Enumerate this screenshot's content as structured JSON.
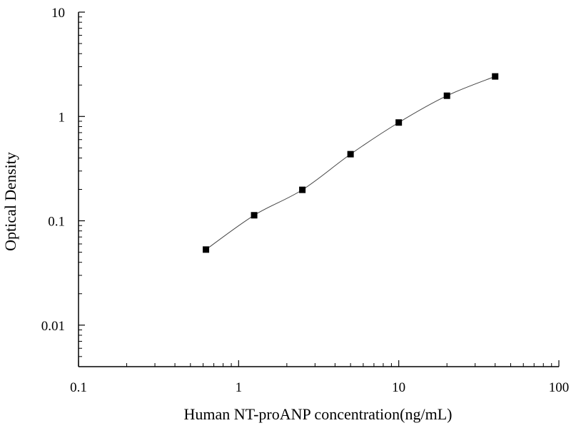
{
  "chart_data": {
    "type": "scatter",
    "title": "",
    "xlabel": "Human NT-proANP concentration(ng/mL)",
    "ylabel": "Optical Density",
    "x_scale": "log",
    "y_scale": "log",
    "xlim": [
      0.1,
      100
    ],
    "ylim": [
      0.004,
      10
    ],
    "x_ticks": [
      {
        "value": 0.1,
        "label": "0.1"
      },
      {
        "value": 1,
        "label": "1"
      },
      {
        "value": 10,
        "label": "10"
      },
      {
        "value": 100,
        "label": "100"
      }
    ],
    "y_ticks": [
      {
        "value": 0.01,
        "label": "0.01"
      },
      {
        "value": 0.1,
        "label": "0.1"
      },
      {
        "value": 1,
        "label": "1"
      },
      {
        "value": 10,
        "label": "10"
      }
    ],
    "grid": false,
    "legend": "none",
    "series": [
      {
        "marker": "square",
        "color": "#000000",
        "points": [
          {
            "x": 0.625,
            "y": 0.053
          },
          {
            "x": 1.25,
            "y": 0.113
          },
          {
            "x": 2.5,
            "y": 0.198
          },
          {
            "x": 5,
            "y": 0.435
          },
          {
            "x": 10,
            "y": 0.875
          },
          {
            "x": 20,
            "y": 1.58
          },
          {
            "x": 40,
            "y": 2.42
          }
        ],
        "fit_curve": "smooth"
      }
    ]
  }
}
